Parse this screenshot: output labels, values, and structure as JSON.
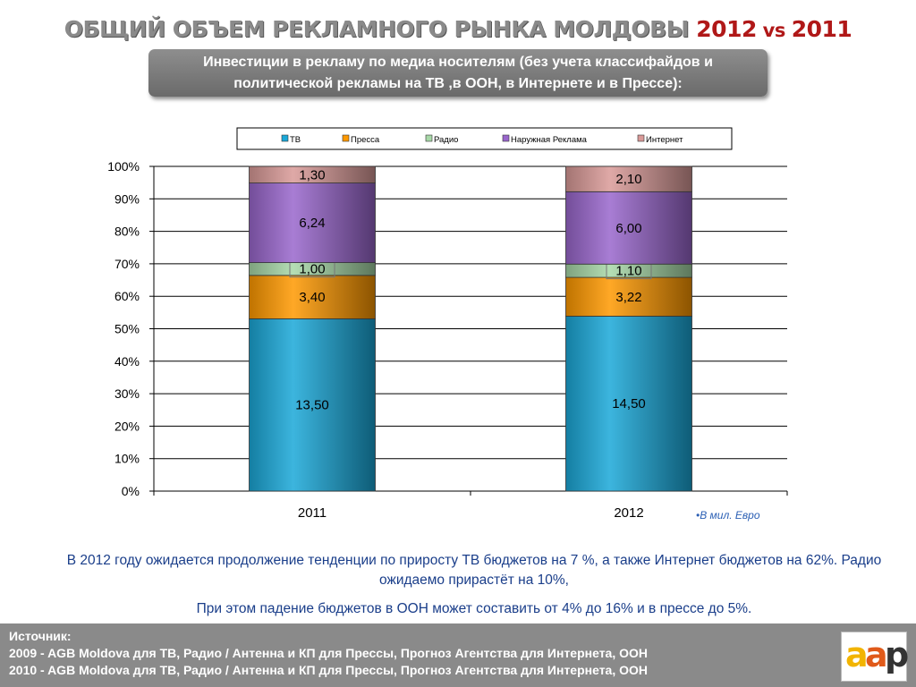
{
  "header": {
    "title_main": "ОБЩИЙ ОБЪЕМ РЕКЛАМНОГО РЫНКА МОЛДОВЫ ",
    "title_year1": "2012",
    "title_vs": " vs ",
    "title_year2": "2011",
    "subtitle": "Инвестиции в рекламу по медиа носителям (без учета классифайдов и политической рекламы на ТВ ,в ООН, в Интернете и в Прессе):"
  },
  "chart_data": {
    "type": "bar",
    "stacked": "percent",
    "categories": [
      "2011",
      "2012"
    ],
    "series": [
      {
        "name": "ТВ",
        "values": [
          13.5,
          14.5
        ],
        "labels": [
          "13,50",
          "14,50"
        ],
        "color": "#1aa8d8"
      },
      {
        "name": "Пресса",
        "values": [
          3.4,
          3.22
        ],
        "labels": [
          "3,40",
          "3,22"
        ],
        "color": "#ff9900"
      },
      {
        "name": "Радио",
        "values": [
          1.0,
          1.1
        ],
        "labels": [
          "1,00",
          "1,10"
        ],
        "color": "#a8d8a8"
      },
      {
        "name": "Наружная Реклама",
        "values": [
          6.24,
          6.0
        ],
        "labels": [
          "6,24",
          "6,00"
        ],
        "color": "#9966cc"
      },
      {
        "name": "Интернет",
        "values": [
          1.3,
          2.1
        ],
        "labels": [
          "1,30",
          "2,10"
        ],
        "color": "#d99a98"
      }
    ],
    "y_ticks": [
      "0%",
      "10%",
      "20%",
      "30%",
      "40%",
      "50%",
      "60%",
      "70%",
      "80%",
      "90%",
      "100%"
    ],
    "ylim": [
      0,
      100
    ],
    "grid": true,
    "legend_position": "top"
  },
  "unit_note": "•В мил. Евро",
  "description": {
    "line1": "В 2012 году  ожидается продолжение тенденции по приросту ТВ  бюджетов на 7 %, а также Интернет бюджетов на 62%. Радио ожидаемо прирастёт на  10%,",
    "line2": "При этом падение бюджетов в ООН может составить от  4% до 16%  и в прессе до 5%."
  },
  "footer": {
    "source_label": "Источник:",
    "line_2009": "2009 - AGB Moldova для ТВ, Радио / Антенна и КП для Прессы, Прогноз Агентства для Интернета, ООН",
    "line_2010": "2010 - AGB Moldova для ТВ, Радио / Антенна и КП для Прессы, Прогноз Агентства для Интернета, ООН"
  },
  "logo": {
    "letter1": "a",
    "letter2": "a",
    "letter3": "p",
    "color1": "#f2b400",
    "color2": "#e05a1a",
    "color3": "#333333"
  }
}
